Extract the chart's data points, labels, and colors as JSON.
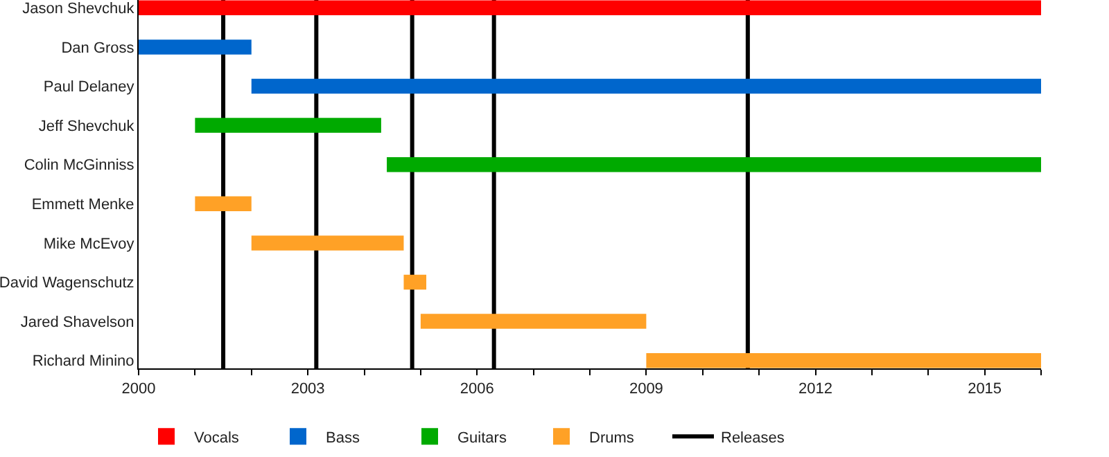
{
  "chart_data": {
    "type": "bar",
    "orientation": "horizontal",
    "categories": [
      "Jason Shevchuk",
      "Dan Gross",
      "Paul Delaney",
      "Jeff Shevchuk",
      "Colin McGinniss",
      "Emmett Menke",
      "Mike McEvoy",
      "David Wagenschutz",
      "Jared Shavelson",
      "Richard Minino"
    ],
    "series": [
      {
        "name": "Vocals",
        "color": "#ff0000",
        "base": [
          2000,
          null,
          null,
          null,
          null,
          null,
          null,
          null,
          null,
          null
        ],
        "values": [
          16,
          null,
          null,
          null,
          null,
          null,
          null,
          null,
          null,
          null
        ]
      },
      {
        "name": "Bass",
        "color": "#0066cc",
        "base": [
          null,
          2000,
          2002,
          null,
          null,
          null,
          null,
          null,
          null,
          null
        ],
        "values": [
          null,
          2,
          14,
          null,
          null,
          null,
          null,
          null,
          null,
          null
        ]
      },
      {
        "name": "Guitars",
        "color": "#00aa00",
        "base": [
          null,
          null,
          null,
          2001,
          2004.4,
          null,
          null,
          null,
          null,
          null
        ],
        "values": [
          null,
          null,
          null,
          3.3,
          11.6,
          null,
          null,
          null,
          null,
          null
        ]
      },
      {
        "name": "Drums",
        "color": "#ffa126",
        "base": [
          null,
          null,
          null,
          null,
          null,
          2001,
          2002,
          2004.7,
          2005,
          2009
        ],
        "values": [
          null,
          null,
          null,
          null,
          null,
          1,
          2.7,
          0.4,
          4,
          7
        ]
      }
    ],
    "ref_lines": [
      {
        "axis": "x",
        "value": 2001.5,
        "label": "Releases",
        "color": "#000000"
      },
      {
        "axis": "x",
        "value": 2003.15,
        "color": "#000000"
      },
      {
        "axis": "x",
        "value": 2004.85,
        "color": "#000000"
      },
      {
        "axis": "x",
        "value": 2006.3,
        "color": "#000000"
      },
      {
        "axis": "x",
        "value": 2010.8,
        "color": "#000000"
      }
    ],
    "xlim": [
      2000,
      2016
    ],
    "xticks": [
      2000,
      {
        "value": 2001,
        "label": null
      },
      {
        "value": 2002,
        "label": null
      },
      2003,
      {
        "value": 2004,
        "label": null
      },
      {
        "value": 2005,
        "label": null
      },
      2006,
      {
        "value": 2007,
        "label": null
      },
      {
        "value": 2008,
        "label": null
      },
      2009,
      {
        "value": 2010,
        "label": null
      },
      {
        "value": 2011,
        "label": null
      },
      2012,
      {
        "value": 2013,
        "label": null
      },
      {
        "value": 2014,
        "label": null
      },
      2015,
      {
        "value": 2016,
        "label": null
      }
    ],
    "grid": false,
    "legend": "bottom"
  }
}
